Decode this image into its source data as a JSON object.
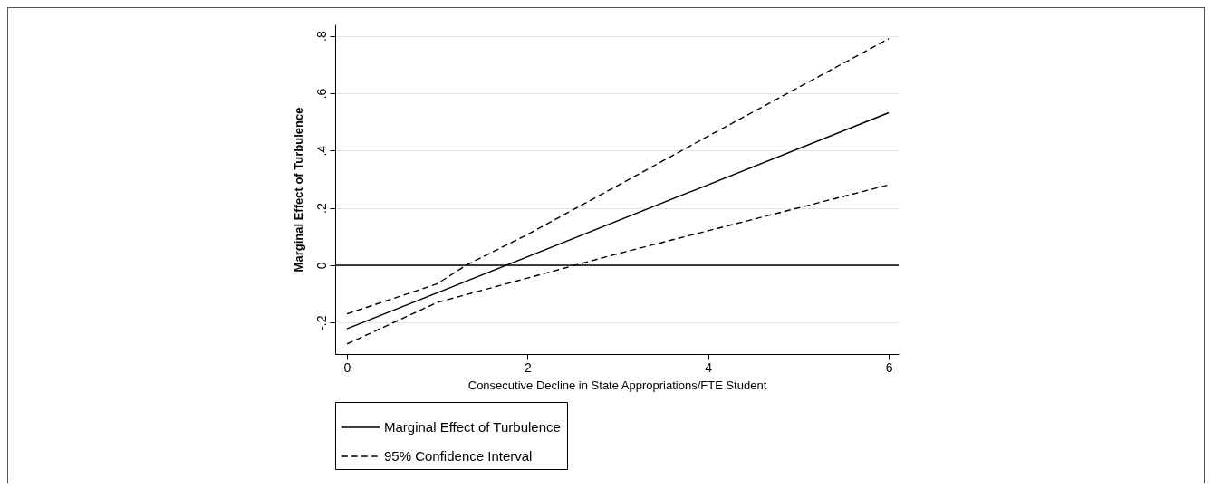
{
  "chart_data": {
    "type": "line",
    "xlabel": "Consecutive Decline in State Appropriations/FTE Student",
    "ylabel": "Marginal Effect of Turbulence",
    "xlim": [
      -0.13,
      6.11
    ],
    "xticks": [
      0,
      2,
      4,
      6
    ],
    "ylim": [
      -0.31,
      0.84
    ],
    "yticks": [
      {
        "value": -0.2,
        "label": "-.2"
      },
      0,
      {
        "value": 0.2,
        "label": ".2"
      },
      {
        "value": 0.4,
        "label": ".4"
      },
      {
        "value": 0.6,
        "label": ".6"
      },
      {
        "value": 0.8,
        "label": ".8"
      }
    ],
    "grid": "y",
    "legend": "bottom",
    "ref_lines": [
      {
        "axis": "y",
        "value": 0,
        "color": "#000000"
      }
    ],
    "series": [
      {
        "name": "Marginal Effect of Turbulence",
        "color": "#000000",
        "line_style": "solid",
        "x": [
          0,
          6
        ],
        "values": [
          -0.222,
          0.532
        ]
      },
      {
        "name": "95% Confidence Interval",
        "color": "#000000",
        "line_style": "dashed",
        "x": [
          0,
          1,
          1.32,
          2,
          3,
          4,
          5,
          6
        ],
        "values": [
          -0.17,
          -0.065,
          0,
          0.107,
          0.278,
          0.45,
          0.62,
          0.79
        ]
      },
      {
        "color": "#000000",
        "line_style": "dashed",
        "x": [
          0,
          1,
          2,
          2.53,
          3,
          4,
          5,
          6
        ],
        "values": [
          -0.275,
          -0.13,
          -0.045,
          0,
          0.04,
          0.12,
          0.2,
          0.28
        ]
      }
    ]
  }
}
